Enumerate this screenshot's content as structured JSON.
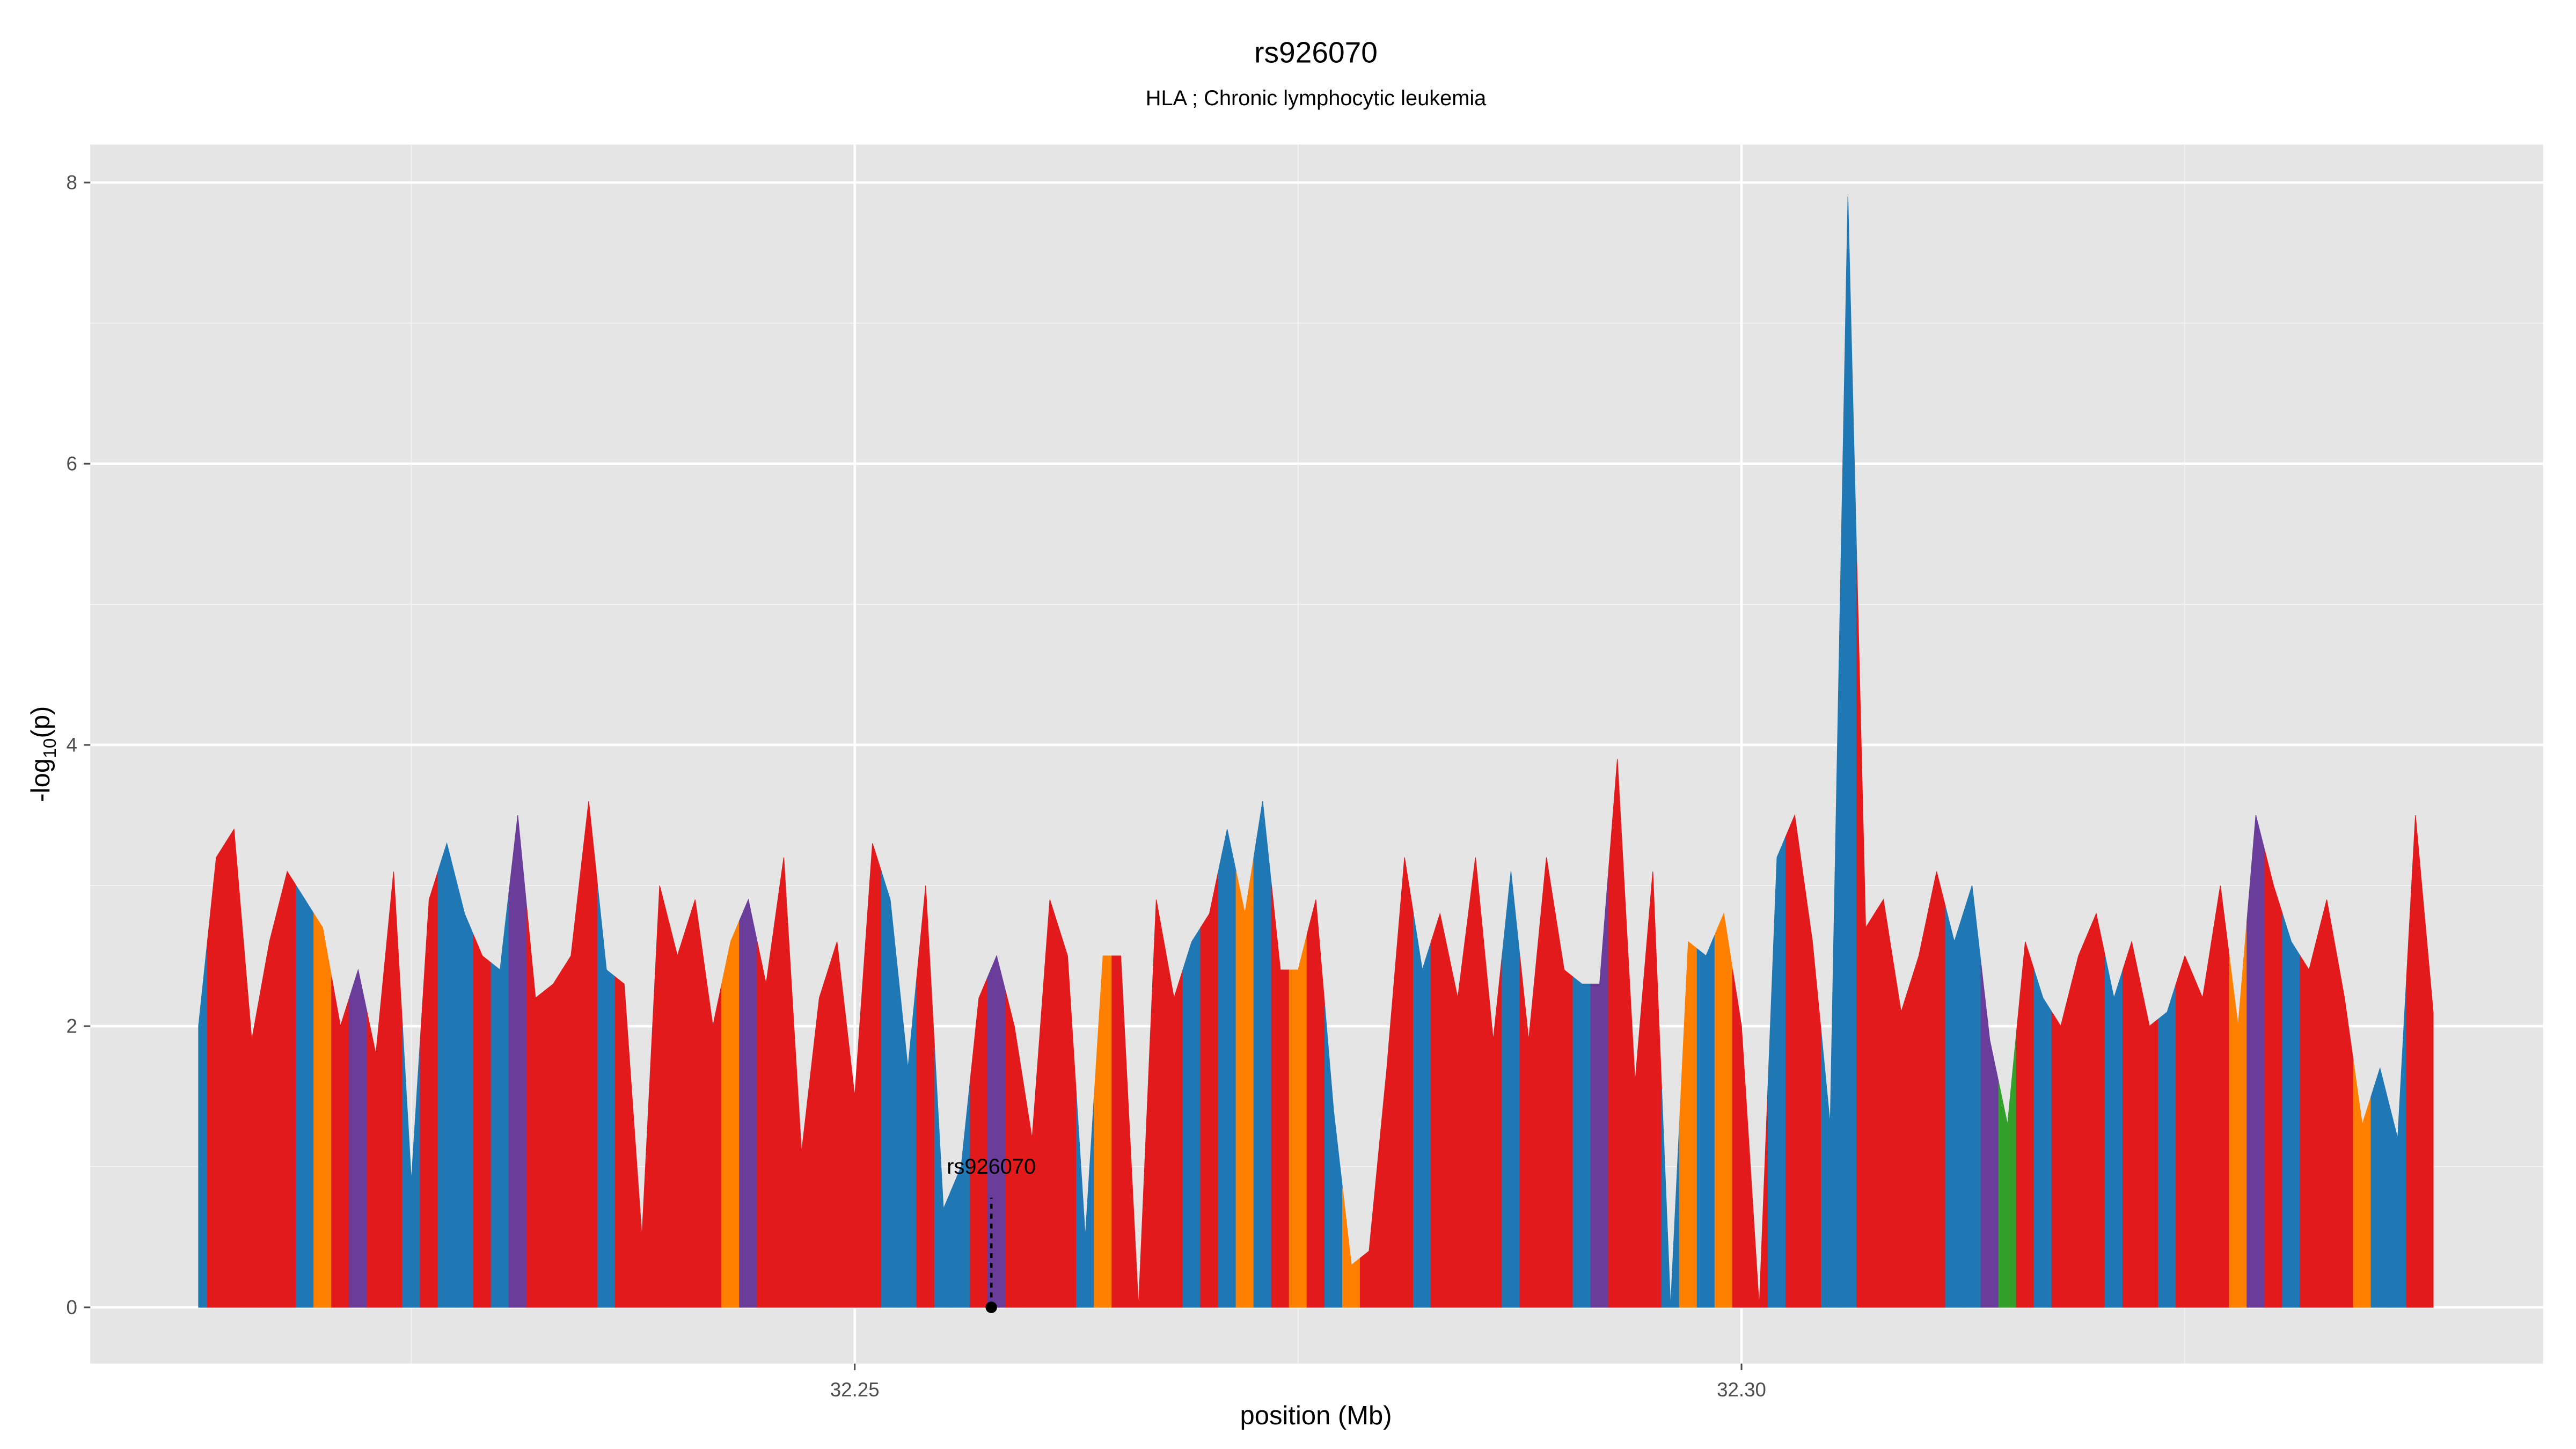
{
  "chart_data": {
    "type": "area",
    "title": "rs926070",
    "subtitle": "HLA ; Chronic lymphocytic leukemia",
    "x_label": "position (Mb)",
    "y_label": {
      "text": "-log",
      "sub": "10",
      "tail": "(p)"
    },
    "xlim": [
      32.2069,
      32.3452
    ],
    "ylim": [
      -0.4,
      8.27
    ],
    "xticks": [
      32.25,
      {
        "value": 32.3,
        "label": "32.30"
      }
    ],
    "yticks": [
      0,
      2,
      4,
      6,
      8
    ],
    "x_minor_grid": [
      32.225,
      32.275,
      32.325
    ],
    "y_minor_grid": [
      1,
      3,
      5,
      7
    ],
    "grid": true,
    "x": [
      32.213,
      32.214,
      32.215,
      32.216,
      32.217,
      32.218,
      32.219,
      32.22,
      32.221,
      32.222,
      32.223,
      32.224,
      32.225,
      32.226,
      32.227,
      32.228,
      32.229,
      32.23,
      32.231,
      32.232,
      32.233,
      32.234,
      32.235,
      32.236,
      32.237,
      32.238,
      32.239,
      32.24,
      32.241,
      32.242,
      32.243,
      32.244,
      32.245,
      32.246,
      32.247,
      32.248,
      32.249,
      32.25,
      32.251,
      32.252,
      32.253,
      32.254,
      32.255,
      32.256,
      32.257,
      32.258,
      32.259,
      32.26,
      32.261,
      32.262,
      32.263,
      32.264,
      32.265,
      32.266,
      32.267,
      32.268,
      32.269,
      32.27,
      32.271,
      32.272,
      32.273,
      32.274,
      32.275,
      32.276,
      32.277,
      32.278,
      32.279,
      32.28,
      32.281,
      32.282,
      32.283,
      32.284,
      32.285,
      32.286,
      32.287,
      32.288,
      32.289,
      32.29,
      32.291,
      32.292,
      32.293,
      32.294,
      32.295,
      32.296,
      32.297,
      32.298,
      32.299,
      32.3,
      32.301,
      32.302,
      32.303,
      32.304,
      32.305,
      32.306,
      32.307,
      32.308,
      32.309,
      32.31,
      32.311,
      32.312,
      32.313,
      32.314,
      32.315,
      32.316,
      32.317,
      32.318,
      32.319,
      32.32,
      32.321,
      32.322,
      32.323,
      32.324,
      32.325,
      32.326,
      32.327,
      32.328,
      32.329,
      32.33,
      32.331,
      32.332,
      32.333,
      32.334,
      32.335,
      32.336,
      32.337,
      32.338,
      32.339
    ],
    "values": [
      2.0,
      3.2,
      3.4,
      1.9,
      2.6,
      3.1,
      2.9,
      2.7,
      2.0,
      2.4,
      1.8,
      3.1,
      0.9,
      2.9,
      3.3,
      2.8,
      2.5,
      2.4,
      3.5,
      2.2,
      2.3,
      2.5,
      3.6,
      2.4,
      2.3,
      0.5,
      3.0,
      2.5,
      2.9,
      2.0,
      2.6,
      2.9,
      2.3,
      3.2,
      1.1,
      2.2,
      2.6,
      1.5,
      3.3,
      2.9,
      1.7,
      3.0,
      0.7,
      1.0,
      2.2,
      2.5,
      2.0,
      1.2,
      2.9,
      2.5,
      0.5,
      2.5,
      2.5,
      0.0,
      2.9,
      2.2,
      2.6,
      2.8,
      3.4,
      2.8,
      3.6,
      2.4,
      2.4,
      2.9,
      1.4,
      0.3,
      0.4,
      1.7,
      3.2,
      2.4,
      2.8,
      2.2,
      3.2,
      1.9,
      3.1,
      1.9,
      3.2,
      2.4,
      2.3,
      2.3,
      3.9,
      1.6,
      3.1,
      0.0,
      2.6,
      2.5,
      2.8,
      2.0,
      0.0,
      3.2,
      3.5,
      2.6,
      1.3,
      7.9,
      2.7,
      2.9,
      2.1,
      2.5,
      3.1,
      2.6,
      3.0,
      1.9,
      1.3,
      2.6,
      2.2,
      2.0,
      2.5,
      2.8,
      2.2,
      2.6,
      2.0,
      2.1,
      2.5,
      2.2,
      3.0,
      2.0,
      3.5,
      3.0,
      2.6,
      2.4,
      2.9,
      2.2,
      1.3,
      1.7,
      1.2,
      3.5,
      2.1
    ],
    "colors": [
      "#1f78b4",
      "#e31a1c",
      "#e31a1c",
      "#e31a1c",
      "#e31a1c",
      "#e31a1c",
      "#1f78b4",
      "#ff7f00",
      "#e31a1c",
      "#6a3d9a",
      "#e31a1c",
      "#e31a1c",
      "#1f78b4",
      "#e31a1c",
      "#1f78b4",
      "#1f78b4",
      "#e31a1c",
      "#1f78b4",
      "#6a3d9a",
      "#e31a1c",
      "#e31a1c",
      "#e31a1c",
      "#e31a1c",
      "#1f78b4",
      "#e31a1c",
      "#e31a1c",
      "#e31a1c",
      "#e31a1c",
      "#e31a1c",
      "#e31a1c",
      "#ff7f00",
      "#6a3d9a",
      "#e31a1c",
      "#e31a1c",
      "#e31a1c",
      "#e31a1c",
      "#e31a1c",
      "#e31a1c",
      "#e31a1c",
      "#1f78b4",
      "#1f78b4",
      "#e31a1c",
      "#1f78b4",
      "#1f78b4",
      "#e31a1c",
      "#6a3d9a",
      "#e31a1c",
      "#e31a1c",
      "#e31a1c",
      "#e31a1c",
      "#1f78b4",
      "#ff7f00",
      "#e31a1c",
      "#e31a1c",
      "#e31a1c",
      "#e31a1c",
      "#1f78b4",
      "#e31a1c",
      "#1f78b4",
      "#ff7f00",
      "#1f78b4",
      "#e31a1c",
      "#ff7f00",
      "#e31a1c",
      "#1f78b4",
      "#ff7f00",
      "#e31a1c",
      "#e31a1c",
      "#e31a1c",
      "#1f78b4",
      "#e31a1c",
      "#e31a1c",
      "#e31a1c",
      "#e31a1c",
      "#1f78b4",
      "#e31a1c",
      "#e31a1c",
      "#e31a1c",
      "#1f78b4",
      "#6a3d9a",
      "#e31a1c",
      "#e31a1c",
      "#e31a1c",
      "#1f78b4",
      "#ff7f00",
      "#1f78b4",
      "#ff7f00",
      "#e31a1c",
      "#e31a1c",
      "#1f78b4",
      "#e31a1c",
      "#e31a1c",
      "#1f78b4",
      "#1f78b4",
      "#e31a1c",
      "#e31a1c",
      "#e31a1c",
      "#e31a1c",
      "#e31a1c",
      "#1f78b4",
      "#1f78b4",
      "#6a3d9a",
      "#33a02c",
      "#e31a1c",
      "#1f78b4",
      "#e31a1c",
      "#e31a1c",
      "#e31a1c",
      "#1f78b4",
      "#e31a1c",
      "#e31a1c",
      "#1f78b4",
      "#e31a1c",
      "#e31a1c",
      "#e31a1c",
      "#ff7f00",
      "#6a3d9a",
      "#e31a1c",
      "#1f78b4",
      "#e31a1c",
      "#e31a1c",
      "#e31a1c",
      "#ff7f00",
      "#1f78b4",
      "#1f78b4",
      "#e31a1c",
      "#e31a1c"
    ],
    "highlight": {
      "label": "rs926070",
      "x": 32.2577,
      "y": 0
    }
  }
}
